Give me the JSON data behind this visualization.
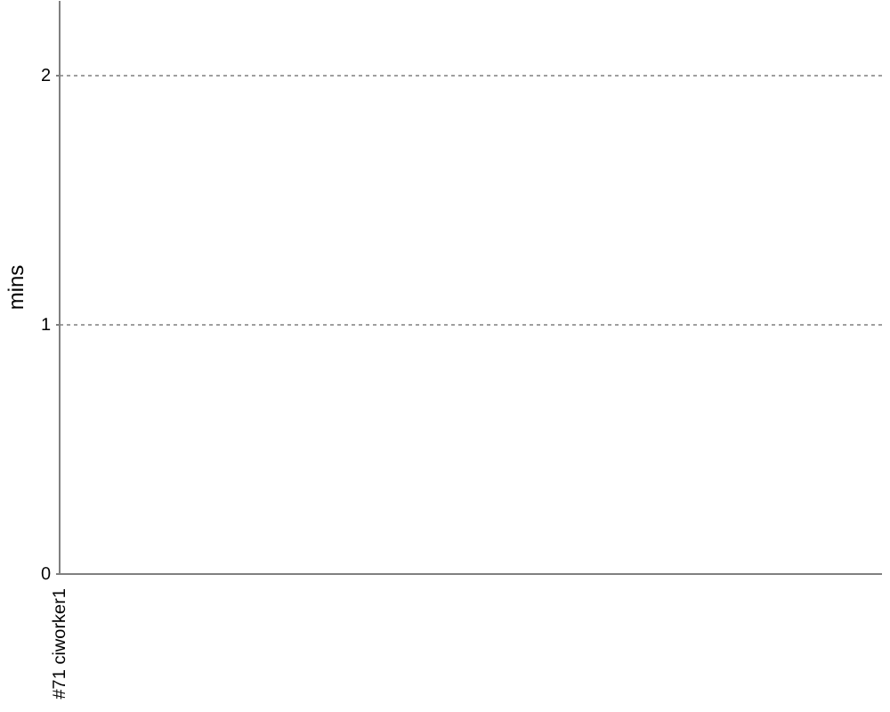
{
  "chart_data": {
    "type": "area",
    "ylabel": "mins",
    "categories": [
      "#71 ciworker1"
    ],
    "values": [
      null
    ],
    "ylim": [
      0,
      2.3
    ],
    "yticks": [
      0,
      1,
      2
    ],
    "grid": "y"
  }
}
